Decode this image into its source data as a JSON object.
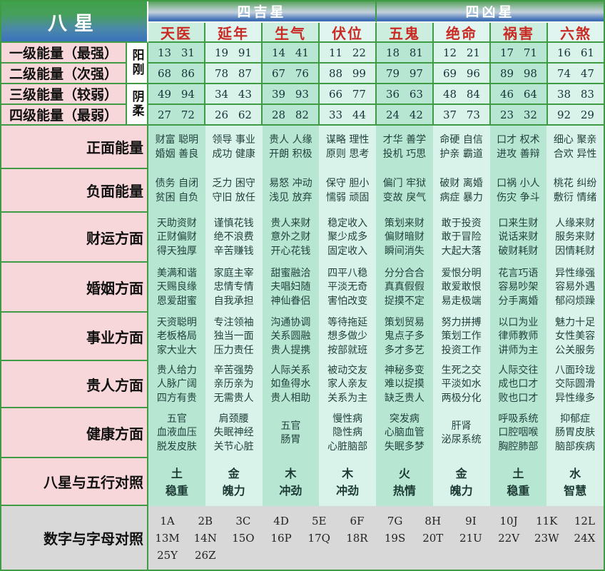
{
  "header": {
    "corner": "八星",
    "groups": [
      {
        "label": "四吉星"
      },
      {
        "label": "四凶星"
      }
    ],
    "stars": [
      "天医",
      "延年",
      "生气",
      "伏位",
      "五鬼",
      "绝命",
      "祸害",
      "六煞"
    ]
  },
  "energy": {
    "side_labels": [
      "阳刚",
      "阴柔"
    ],
    "rows": [
      {
        "label": "一级能量（最强）",
        "values": [
          "13 31",
          "19 91",
          "14 41",
          "11 22",
          "18 81",
          "12 21",
          "17 71",
          "16 61"
        ]
      },
      {
        "label": "二级能量（次强）",
        "values": [
          "68 86",
          "78 87",
          "67 76",
          "88 99",
          "79 97",
          "69 96",
          "89 98",
          "74 47"
        ]
      },
      {
        "label": "三级能量（较弱）",
        "values": [
          "49 94",
          "34 43",
          "39 93",
          "66 77",
          "36 63",
          "48 84",
          "46 64",
          "38 83"
        ]
      },
      {
        "label": "四级能量（最弱）",
        "values": [
          "27 72",
          "26 62",
          "28 82",
          "33 44",
          "24 42",
          "37 73",
          "23 32",
          "92 29"
        ]
      }
    ]
  },
  "categories": [
    {
      "label": "正面能量",
      "cells": [
        [
          "财富 聪明",
          "婚姻 善良"
        ],
        [
          "领导 事业",
          "成功 健康"
        ],
        [
          "贵人 人缘",
          "开朗 积极"
        ],
        [
          "谋略 理性",
          "原则 思考"
        ],
        [
          "才华 善学",
          "投机 巧思"
        ],
        [
          "命硬 自信",
          "护亲 霸道"
        ],
        [
          "口才 权术",
          "进攻 善辩"
        ],
        [
          "细心 聚亲",
          "合欢 异性"
        ]
      ]
    },
    {
      "label": "负面能量",
      "cells": [
        [
          "债务 自闭",
          "贫困 自负"
        ],
        [
          "乏力 困守",
          "守旧 放任"
        ],
        [
          "易怒 冲动",
          "浅见 放弃"
        ],
        [
          "保守 胆小",
          "懦弱 顽固"
        ],
        [
          "偏门 牢狱",
          "变故 戾气"
        ],
        [
          "破财 离婚",
          "病症 暴力"
        ],
        [
          "口祸 小人",
          "伤灾 争斗"
        ],
        [
          "桃花 纠纷",
          "敷衍 情绪"
        ]
      ]
    },
    {
      "label": "财运方面",
      "cells": [
        [
          "天助资财",
          "正财偏财",
          "得天独厚"
        ],
        [
          "谨慎花钱",
          "绝不浪费",
          "辛苦赚钱"
        ],
        [
          "贵人来财",
          "意外之财",
          "开心花钱"
        ],
        [
          "稳定收入",
          "聚少成多",
          "固定收入"
        ],
        [
          "策划来财",
          "偏财暗财",
          "瞬间消失"
        ],
        [
          "敢于投资",
          "敢于冒险",
          "大起大落"
        ],
        [
          "口来生财",
          "说话来财",
          "破财耗财"
        ],
        [
          "人缘来财",
          "服务来财",
          "因情耗财"
        ]
      ]
    },
    {
      "label": "婚姻方面",
      "cells": [
        [
          "美满和谐",
          "天赐良缘",
          "恩爱甜蜜"
        ],
        [
          "家庭主宰",
          "忠情专情",
          "自我承担"
        ],
        [
          "甜蜜融洽",
          "夫唱妇随",
          "神仙眷侣"
        ],
        [
          "四平八稳",
          "平淡无奇",
          "害怕改变"
        ],
        [
          "分分合合",
          "真真假假",
          "捉摸不定"
        ],
        [
          "爱恨分明",
          "敢爱敢恨",
          "易走极端"
        ],
        [
          "花言巧语",
          "容易吵架",
          "分手离婚"
        ],
        [
          "异性缘强",
          "容易外遇",
          "郁闷烦躁"
        ]
      ]
    },
    {
      "label": "事业方面",
      "cells": [
        [
          "天资聪明",
          "老板格局",
          "家大业大"
        ],
        [
          "专注领袖",
          "独当一面",
          "压力责任"
        ],
        [
          "沟通协调",
          "关系圆融",
          "贵人提携"
        ],
        [
          "等待拖延",
          "想多做少",
          "按部就班"
        ],
        [
          "策划贸易",
          "鬼点子多",
          "多才多艺"
        ],
        [
          "努力拼搏",
          "策划工作",
          "投资工作"
        ],
        [
          "以口为业",
          "律师教师",
          "讲师为主"
        ],
        [
          "魅力十足",
          "女性美容",
          "公关服务"
        ]
      ]
    },
    {
      "label": "贵人方面",
      "cells": [
        [
          "贵人给力",
          "人脉广阔",
          "四方有贵"
        ],
        [
          "辛苦强势",
          "亲历亲为",
          "无需贵人"
        ],
        [
          "人际关系",
          "如鱼得水",
          "贵人相助"
        ],
        [
          "被动交友",
          "家人亲友",
          "关系为主"
        ],
        [
          "神秘多变",
          "难以捉摸",
          "缺乏贵人"
        ],
        [
          "生死之交",
          "平淡如水",
          "两极分化"
        ],
        [
          "人际交往",
          "成也口才",
          "败也口才"
        ],
        [
          "八面玲珑",
          "交际圆滑",
          "异性缘多"
        ]
      ]
    },
    {
      "label": "健康方面",
      "cells": [
        [
          "五官",
          "血液血压",
          "脱发皮肤"
        ],
        [
          "肩颈腰",
          "失眠神经",
          "关节心脏"
        ],
        [
          "五官",
          "肠胃"
        ],
        [
          "慢性病",
          "隐性病",
          "心脏脑部"
        ],
        [
          "突发病",
          "心脑血管",
          "失眠多梦"
        ],
        [
          "肝肾",
          "泌尿系统"
        ],
        [
          "呼吸系统",
          "口腔咽喉",
          "胸腔肺部"
        ],
        [
          "抑郁症",
          "肠胃皮肤",
          "脑部疾病"
        ]
      ]
    },
    {
      "label": "八星与五行对照",
      "cells": [
        [
          "土",
          "稳重"
        ],
        [
          "金",
          "魄力"
        ],
        [
          "木",
          "冲劲"
        ],
        [
          "木",
          "冲劲"
        ],
        [
          "火",
          "热情"
        ],
        [
          "金",
          "魄力"
        ],
        [
          "土",
          "稳重"
        ],
        [
          "水",
          "智慧"
        ]
      ]
    }
  ],
  "letters": {
    "label": "数字与字母对照",
    "items": [
      "1A",
      "2B",
      "3C",
      "4D",
      "5E",
      "6F",
      "7G",
      "8H",
      "9I",
      "10J",
      "11K",
      "12L",
      "13M",
      "14N",
      "15O",
      "16P",
      "17Q",
      "18R",
      "19S",
      "20T",
      "21U",
      "22V",
      "23W",
      "24X",
      "25Y",
      "26Z"
    ]
  },
  "colors": {
    "grid_green": "#3f9b44",
    "label_pink": "#f8d7da",
    "cell_aqua_dark": "#b7e7d3",
    "cell_aqua_light": "#d9f3ea",
    "star_red_text": "#c92a24",
    "header_green": "#47a05a",
    "header_blue": "#3b72bd",
    "bottom_gray": "#d8d8d8"
  }
}
